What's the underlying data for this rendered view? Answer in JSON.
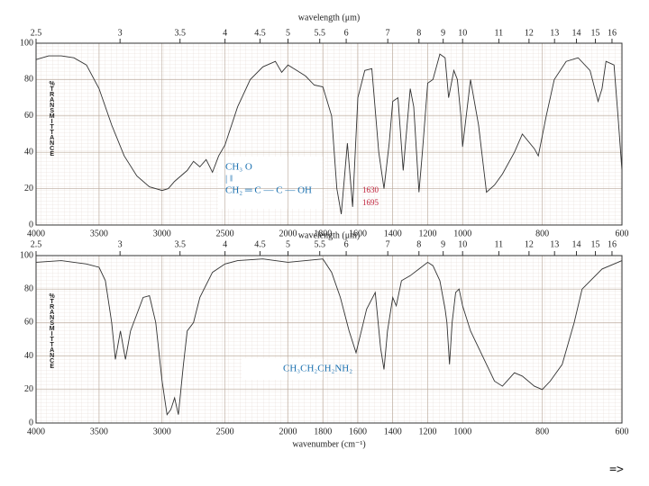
{
  "chart_data": [
    {
      "type": "line",
      "x2label": "wavelength (μm)",
      "x2ticks": [
        2.5,
        3,
        3.5,
        4,
        4.5,
        5,
        5.5,
        6,
        7,
        8,
        9,
        10,
        11,
        12,
        13,
        14,
        15,
        16
      ],
      "ylabel": "%TRANSMITTANCE",
      "xlim": [
        4000,
        600
      ],
      "xticks": [
        4000,
        3500,
        3000,
        2500,
        2000,
        1800,
        1600,
        1400,
        1200,
        1000,
        800,
        600
      ],
      "ylim": [
        0,
        100
      ],
      "yticks": [
        0,
        20,
        40,
        60,
        80,
        100
      ],
      "grid": true,
      "x": [
        4000,
        3900,
        3800,
        3700,
        3600,
        3500,
        3400,
        3300,
        3200,
        3100,
        3000,
        2950,
        2900,
        2800,
        2750,
        2700,
        2650,
        2600,
        2550,
        2500,
        2400,
        2300,
        2200,
        2100,
        2050,
        2000,
        1950,
        1900,
        1850,
        1800,
        1750,
        1720,
        1695,
        1660,
        1630,
        1600,
        1560,
        1520,
        1480,
        1450,
        1420,
        1400,
        1370,
        1340,
        1300,
        1280,
        1250,
        1230,
        1200,
        1170,
        1130,
        1100,
        1080,
        1050,
        1030,
        1010,
        1000,
        980,
        960,
        940,
        920,
        900,
        870,
        850,
        820,
        810,
        790,
        770,
        740,
        710,
        680,
        660,
        650,
        640,
        620,
        610,
        600
      ],
      "series": [
        {
          "color": "#333333",
          "values": [
            91,
            93,
            93,
            92,
            88,
            75,
            55,
            38,
            27,
            21,
            19,
            20,
            24,
            30,
            35,
            32,
            36,
            29,
            38,
            44,
            65,
            80,
            87,
            90,
            84,
            88,
            85,
            82,
            77,
            76,
            60,
            20,
            6,
            45,
            10,
            70,
            85,
            86,
            40,
            20,
            45,
            68,
            70,
            30,
            75,
            65,
            18,
            40,
            78,
            80,
            94,
            92,
            70,
            85,
            80,
            60,
            43,
            80,
            55,
            18,
            22,
            28,
            40,
            50,
            42,
            38,
            60,
            80,
            90,
            92,
            85,
            68,
            75,
            90,
            88,
            60,
            30
          ]
        }
      ],
      "annotations": [
        "1630",
        "1695"
      ],
      "structure": [
        "CH₃   O",
        "|        ‖",
        "CH₂ ═ C — C — OH"
      ]
    },
    {
      "type": "line",
      "x2label": "wavelength (μm)",
      "x2ticks": [
        2.5,
        3,
        3.5,
        4,
        4.5,
        5,
        5.5,
        6,
        7,
        8,
        9,
        10,
        11,
        12,
        13,
        14,
        15,
        16
      ],
      "xlabel": "wavenumber (cm⁻¹)",
      "ylabel": "%TRANSMITTANCE",
      "xlim": [
        4000,
        600
      ],
      "xticks": [
        4000,
        3500,
        3000,
        2500,
        2000,
        1800,
        1600,
        1400,
        1200,
        1000,
        800,
        600
      ],
      "ylim": [
        0,
        100
      ],
      "yticks": [
        0,
        20,
        40,
        60,
        80,
        100
      ],
      "grid": true,
      "x": [
        4000,
        3800,
        3600,
        3500,
        3450,
        3400,
        3370,
        3330,
        3290,
        3250,
        3200,
        3150,
        3100,
        3050,
        3000,
        2960,
        2930,
        2900,
        2870,
        2830,
        2800,
        2750,
        2700,
        2600,
        2500,
        2400,
        2200,
        2000,
        1900,
        1800,
        1750,
        1700,
        1650,
        1610,
        1580,
        1550,
        1500,
        1470,
        1450,
        1430,
        1400,
        1380,
        1350,
        1300,
        1250,
        1200,
        1170,
        1130,
        1100,
        1090,
        1075,
        1060,
        1040,
        1020,
        1000,
        980,
        950,
        920,
        900,
        870,
        850,
        820,
        800,
        780,
        750,
        720,
        700,
        650,
        600
      ],
      "series": [
        {
          "color": "#333333",
          "values": [
            96,
            97,
            95,
            93,
            85,
            60,
            38,
            55,
            38,
            55,
            65,
            75,
            76,
            60,
            25,
            5,
            8,
            15,
            5,
            35,
            55,
            60,
            75,
            90,
            95,
            97,
            98,
            96,
            97,
            98,
            90,
            75,
            55,
            42,
            55,
            68,
            78,
            45,
            32,
            55,
            75,
            70,
            85,
            88,
            92,
            96,
            94,
            85,
            68,
            60,
            35,
            60,
            78,
            80,
            70,
            55,
            40,
            25,
            22,
            30,
            28,
            22,
            20,
            25,
            35,
            60,
            80,
            92,
            97
          ]
        }
      ],
      "structure": [
        "CH₃CH₂CH₂NH₂"
      ]
    }
  ],
  "footer": "=>"
}
